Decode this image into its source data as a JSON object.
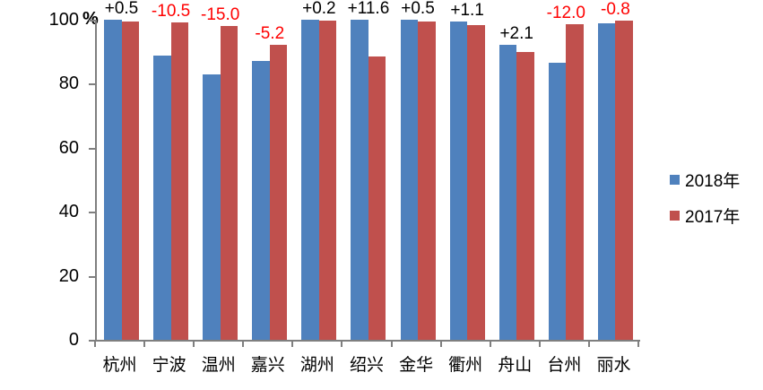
{
  "chart_data": {
    "type": "bar",
    "title": "",
    "categories": [
      "杭州",
      "宁波",
      "温州",
      "嘉兴",
      "湖州",
      "绍兴",
      "金华",
      "衢州",
      "舟山",
      "台州",
      "丽水"
    ],
    "series": [
      {
        "name": "2018年",
        "color": "#4F81BD",
        "values": [
          100.0,
          88.8,
          83.0,
          87.0,
          100.0,
          100.0,
          100.0,
          99.5,
          92.1,
          86.5,
          99.0
        ]
      },
      {
        "name": "2017年",
        "color": "#C0504D",
        "values": [
          99.5,
          99.3,
          98.0,
          92.2,
          99.8,
          88.4,
          99.5,
          98.4,
          90.0,
          98.5,
          99.8
        ]
      }
    ],
    "point_labels": [
      "+0.5",
      "-10.5",
      "-15.0",
      "-5.2",
      "+0.2",
      "+11.6",
      "+0.5",
      "+1.1",
      "+2.1",
      "-12.0",
      "-0.8"
    ],
    "point_label_colors": {
      "positive": "#000000",
      "negative": "#FF0000"
    },
    "y_ticks": [
      0,
      20,
      40,
      60,
      80,
      100
    ],
    "ylim": [
      0,
      100
    ],
    "y_unit": "%",
    "xlabel": "",
    "ylabel": "",
    "grid": false,
    "legend_position": "right",
    "axis_color": "#7F7F7F",
    "background": "#FFFFFF"
  }
}
